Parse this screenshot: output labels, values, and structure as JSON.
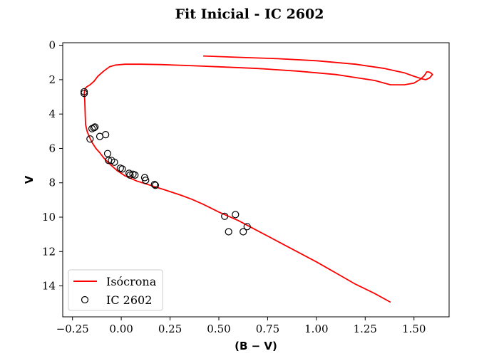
{
  "chart_data": {
    "type": "line",
    "title": "Fit Inicial - IC 2602",
    "xlabel": "(B − V)",
    "ylabel": "V",
    "xlim": [
      -0.3,
      1.68
    ],
    "ylim": [
      15.8,
      -0.15
    ],
    "y_inverted": true,
    "grid": false,
    "legend_position": "lower-left",
    "xticks": [
      -0.25,
      0.0,
      0.25,
      0.5,
      0.75,
      1.0,
      1.25,
      1.5
    ],
    "xtick_labels": [
      "−0.25",
      "0.00",
      "0.25",
      "0.50",
      "0.75",
      "1.00",
      "1.25",
      "1.50"
    ],
    "yticks": [
      0,
      2,
      4,
      6,
      8,
      10,
      12,
      14
    ],
    "ytick_labels": [
      "0",
      "2",
      "4",
      "6",
      "8",
      "10",
      "12",
      "14"
    ],
    "series": [
      {
        "name": "Isócrona",
        "type": "line",
        "color": "#ff0000",
        "x": [
          1.38,
          1.3,
          1.2,
          1.1,
          1.0,
          0.9,
          0.8,
          0.7,
          0.6,
          0.5,
          0.42,
          0.36,
          0.3,
          0.22,
          0.15,
          0.08,
          0.02,
          -0.02,
          -0.06,
          -0.09,
          -0.11,
          -0.13,
          -0.15,
          -0.165,
          -0.175,
          -0.18,
          -0.183,
          -0.185,
          -0.187,
          -0.19,
          -0.185,
          -0.175,
          -0.16,
          -0.14,
          -0.12,
          -0.09,
          -0.06,
          -0.03,
          0.02,
          0.1,
          0.2,
          0.35,
          0.5,
          0.7,
          0.9,
          1.1,
          1.3,
          1.38,
          1.45,
          1.5,
          1.53,
          1.55,
          1.56,
          1.565,
          1.575,
          1.585,
          1.595,
          1.58,
          1.56,
          1.54,
          1.5,
          1.45,
          1.35,
          1.2,
          1.0,
          0.8,
          0.6,
          0.42
        ],
        "y": [
          14.95,
          14.45,
          13.9,
          13.25,
          12.6,
          12.0,
          11.4,
          10.8,
          10.2,
          9.7,
          9.25,
          8.95,
          8.7,
          8.4,
          8.15,
          7.9,
          7.6,
          7.3,
          6.9,
          6.55,
          6.25,
          6.0,
          5.65,
          5.3,
          5.0,
          4.75,
          4.6,
          4.0,
          3.2,
          2.8,
          2.5,
          2.4,
          2.3,
          2.1,
          1.8,
          1.5,
          1.25,
          1.15,
          1.1,
          1.1,
          1.12,
          1.18,
          1.25,
          1.35,
          1.5,
          1.7,
          2.05,
          2.3,
          2.3,
          2.2,
          2.0,
          1.8,
          1.65,
          1.55,
          1.55,
          1.6,
          1.7,
          1.9,
          2.0,
          1.95,
          1.8,
          1.6,
          1.35,
          1.1,
          0.9,
          0.78,
          0.7,
          0.62
        ]
      },
      {
        "name": "IC 2602",
        "type": "scatter",
        "color": "#000000",
        "x": [
          -0.19,
          -0.19,
          -0.16,
          -0.15,
          -0.14,
          -0.135,
          -0.11,
          -0.08,
          -0.07,
          -0.065,
          -0.05,
          -0.035,
          -0.005,
          0.005,
          0.04,
          0.045,
          0.06,
          0.07,
          0.12,
          0.125,
          0.17,
          0.175,
          0.53,
          0.55,
          0.585,
          0.625,
          0.645
        ],
        "y": [
          2.7,
          2.8,
          5.45,
          4.85,
          4.8,
          4.75,
          5.3,
          5.2,
          6.3,
          6.7,
          6.7,
          6.8,
          7.15,
          7.2,
          7.45,
          7.55,
          7.5,
          7.55,
          7.7,
          7.85,
          8.1,
          8.15,
          9.95,
          10.85,
          9.85,
          10.85,
          10.55
        ]
      }
    ]
  }
}
